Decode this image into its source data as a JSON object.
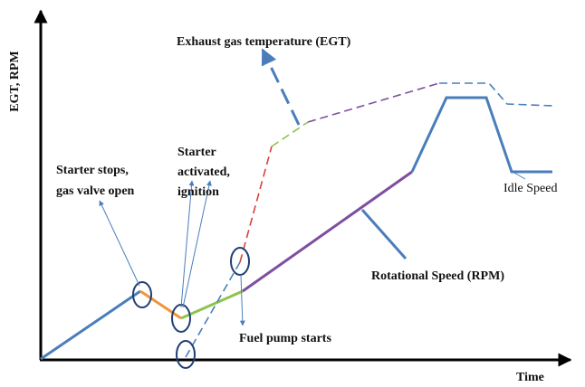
{
  "axes": {
    "y_label": "EGT, RPM",
    "x_label": "Time"
  },
  "labels": {
    "egt": "Exhaust gas temperature (EGT)",
    "starter_stops": [
      "Starter stops,",
      "gas valve open"
    ],
    "starter_activated": [
      "Starter",
      "activated,",
      "ignition"
    ],
    "fuel_pump": "Fuel pump starts",
    "rpm": "Rotational Speed (RPM)",
    "idle": "Idle Speed"
  }
}
